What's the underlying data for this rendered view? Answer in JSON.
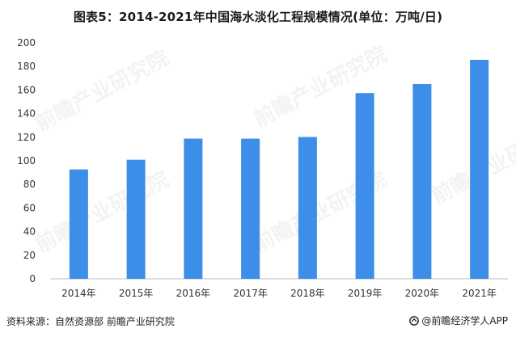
{
  "title": "图表5：2014-2021年中国海水淡化工程规模情况(单位：万吨/日)",
  "source": "资料来源：自然资源部 前瞻产业研究院",
  "brand": "@前瞻经济学人APP",
  "watermark": "前瞻产业研究院",
  "colors": {
    "bar": "#3d8ee8",
    "axis": "#bfbfbf",
    "tick_text": "#333333"
  },
  "chart_data": {
    "type": "bar",
    "title": "图表5：2014-2021年中国海水淡化工程规模情况(单位：万吨/日)",
    "xlabel": "",
    "ylabel": "",
    "categories": [
      "2014年",
      "2015年",
      "2016年",
      "2017年",
      "2018年",
      "2019年",
      "2020年",
      "2021年"
    ],
    "series": [
      {
        "values": [
          92.7,
          100.9,
          118.8,
          118.8,
          120.2,
          157.4,
          165.1,
          185.6
        ]
      }
    ],
    "ylim": [
      0,
      200
    ],
    "yticks": [
      "0",
      "20",
      "40",
      "60",
      "80",
      "100",
      "120",
      "140",
      "160",
      "180",
      "200"
    ],
    "grid": false,
    "legend": "none"
  }
}
